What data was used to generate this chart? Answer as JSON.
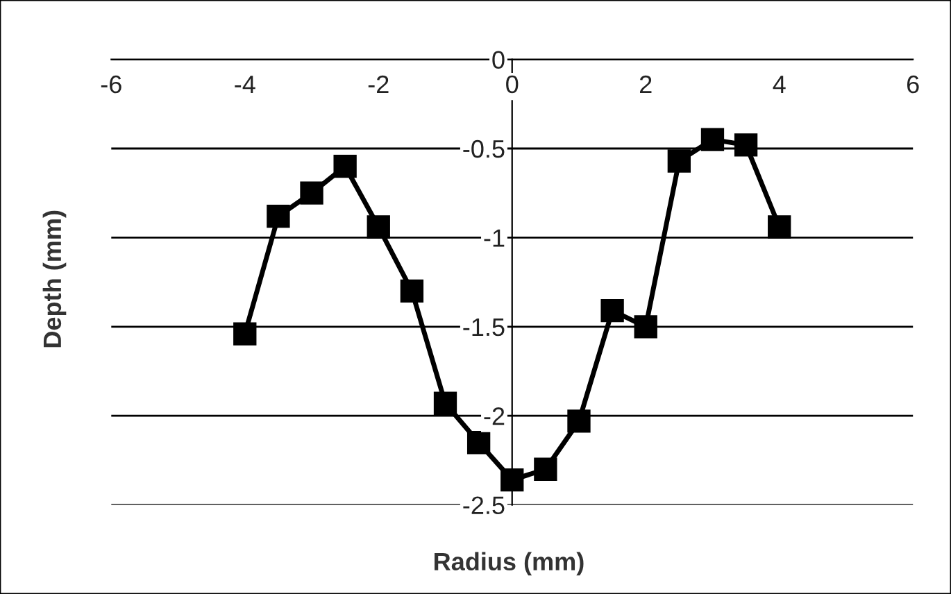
{
  "chart_data": {
    "type": "line",
    "xlabel": "Radius (mm)",
    "ylabel": "Depth (mm)",
    "x": [
      -4,
      -3.5,
      -3,
      -2.5,
      -2,
      -1.5,
      -1,
      -0.5,
      0,
      0.5,
      1,
      1.5,
      2,
      2.5,
      3,
      3.5,
      4
    ],
    "series": [
      {
        "color": "#000000",
        "values": [
          -1.54,
          -0.88,
          -0.75,
          -0.6,
          -0.94,
          -1.3,
          -1.93,
          -2.15,
          -2.36,
          -2.3,
          -2.03,
          -1.41,
          -1.5,
          -0.57,
          -0.45,
          -0.48,
          -0.94
        ]
      }
    ],
    "xlim": [
      -6,
      6
    ],
    "xticks": [
      -6,
      -4,
      -2,
      0,
      2,
      4,
      6
    ],
    "ylim": [
      -2.5,
      0
    ],
    "yticks": [
      0,
      -0.5,
      -1,
      -1.5,
      -2,
      -2.5
    ],
    "grid": "y",
    "marker": "square",
    "line_style": "solid",
    "legend": false
  }
}
